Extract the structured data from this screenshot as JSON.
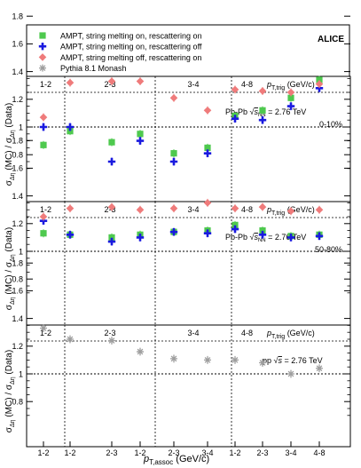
{
  "experiment_label": "ALICE",
  "legend": [
    {
      "key": "ampt_sm_on_rs_on",
      "label": "AMPT, string melting on, rescattering on",
      "marker": "square",
      "color": "#4ec94e"
    },
    {
      "key": "ampt_sm_on_rs_off",
      "label": "AMPT, string melting on, rescattering off",
      "marker": "cross",
      "color": "#1a1adf"
    },
    {
      "key": "ampt_sm_off_rs_on",
      "label": "AMPT, string melting off, rescattering on",
      "marker": "diamond",
      "color": "#ef7b7b"
    },
    {
      "key": "pythia",
      "label": "Pythia 8.1 Monash",
      "marker": "star",
      "color": "#9e9e9e"
    }
  ],
  "x_axis": {
    "label_main": "p",
    "label_sub": "T,assoc",
    "label_unit": " (GeV/c)",
    "tick_labels": [
      "1-2",
      "1-2",
      "2-3",
      "1-2",
      "2-3",
      "3-4",
      "1-2",
      "2-3",
      "3-4",
      "4-8"
    ]
  },
  "group_header": {
    "labels": [
      "1-2",
      "2-3",
      "3-4",
      "4-8"
    ],
    "ptrig_main": "p",
    "ptrig_sub": "T,trig",
    "ptrig_unit": " (GeV/c)"
  },
  "y_axis": {
    "label_main": "σ",
    "label_sub1": "Δη",
    "label_mid": " (MC) / σ",
    "label_sub2": "Δη",
    "label_end": " (Data)"
  },
  "chart_data": [
    {
      "type": "scatter",
      "panel": "top",
      "annotation_system": "Pb-Pb",
      "annotation_energy": "= 2.76 TeV",
      "annotation_centrality": "0-10%",
      "ylim": [
        0.6,
        1.8
      ],
      "yticks": [
        "0.8",
        "1",
        "1.2",
        "1.4",
        "1.6",
        "1.8"
      ],
      "reference_line": 1.0,
      "x": [
        "1-2|1-2",
        "2-3|1-2",
        "2-3|2-3",
        "3-4|1-2",
        "3-4|2-3",
        "3-4|3-4",
        "4-8|1-2",
        "4-8|2-3",
        "4-8|3-4",
        "4-8|4-8"
      ],
      "series": [
        {
          "key": "ampt_sm_on_rs_on",
          "values": [
            0.87,
            0.97,
            0.89,
            0.95,
            0.81,
            0.85,
            1.08,
            1.12,
            1.21,
            1.34
          ]
        },
        {
          "key": "ampt_sm_on_rs_off",
          "values": [
            1.0,
            1.0,
            0.75,
            0.9,
            0.75,
            0.81,
            1.06,
            1.05,
            1.15,
            1.28
          ]
        },
        {
          "key": "ampt_sm_off_rs_on",
          "values": [
            1.07,
            1.32,
            1.33,
            1.33,
            1.21,
            1.12,
            1.27,
            1.26,
            1.25,
            1.31
          ]
        }
      ]
    },
    {
      "type": "scatter",
      "panel": "middle",
      "annotation_system": "Pb-Pb",
      "annotation_energy": "= 2.76 TeV",
      "annotation_centrality": "50-80%",
      "ylim": [
        0.6,
        1.8
      ],
      "yticks": [
        "0.8",
        "1",
        "1.2",
        "1.4",
        "1.6",
        "1.8"
      ],
      "reference_line": 1.0,
      "x": [
        "1-2|1-2",
        "2-3|1-2",
        "2-3|2-3",
        "3-4|1-2",
        "3-4|2-3",
        "3-4|3-4",
        "4-8|1-2",
        "4-8|2-3",
        "4-8|3-4",
        "4-8|4-8"
      ],
      "series": [
        {
          "key": "ampt_sm_on_rs_on",
          "values": [
            1.13,
            1.12,
            1.1,
            1.12,
            1.14,
            1.15,
            1.19,
            1.15,
            1.11,
            1.12
          ]
        },
        {
          "key": "ampt_sm_on_rs_off",
          "values": [
            1.22,
            1.12,
            1.07,
            1.1,
            1.14,
            1.13,
            1.16,
            1.12,
            1.1,
            1.11
          ]
        },
        {
          "key": "ampt_sm_off_rs_on",
          "values": [
            1.25,
            1.31,
            1.32,
            1.3,
            1.31,
            1.35,
            1.31,
            1.32,
            1.29,
            1.3
          ]
        }
      ]
    },
    {
      "type": "scatter",
      "panel": "bottom",
      "annotation_system": "pp",
      "annotation_energy": "= 2.76 TeV",
      "annotation_centrality": "",
      "ylim": [
        0.6,
        1.8
      ],
      "yticks": [
        "0.8",
        "1",
        "1.2",
        "1.4",
        "1.6",
        "1.8"
      ],
      "reference_line": 1.0,
      "x": [
        "1-2|1-2",
        "2-3|1-2",
        "2-3|2-3",
        "3-4|1-2",
        "3-4|2-3",
        "3-4|3-4",
        "4-8|1-2",
        "4-8|2-3",
        "4-8|3-4",
        "4-8|4-8"
      ],
      "series": [
        {
          "key": "pythia",
          "values": [
            1.33,
            1.25,
            1.24,
            1.16,
            1.11,
            1.1,
            1.1,
            1.08,
            1.0,
            1.04
          ]
        }
      ]
    }
  ]
}
